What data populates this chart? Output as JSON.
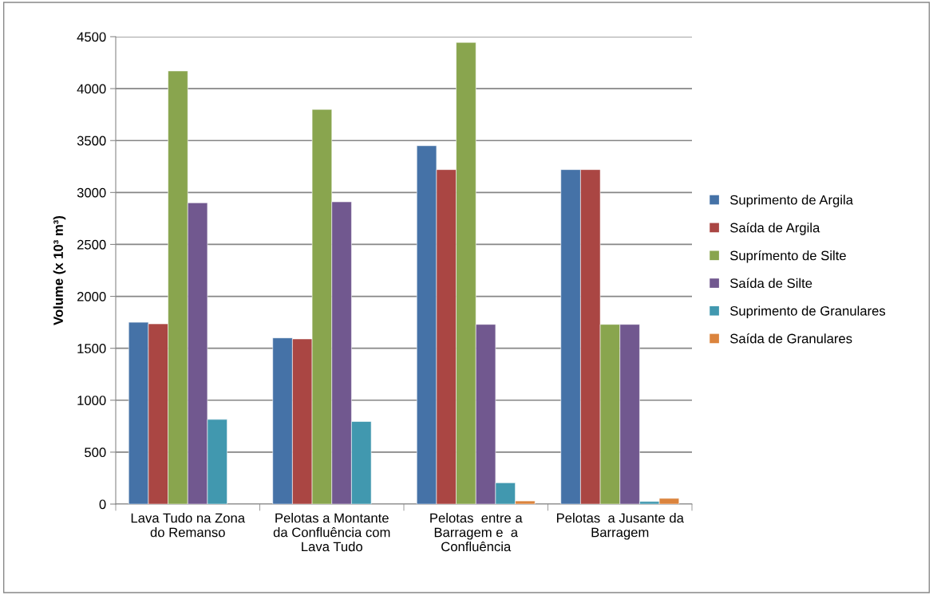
{
  "chart_data": {
    "type": "bar",
    "ylabel": "Volume (x 10³ m³)",
    "categories": [
      "Lava Tudo na Zona\ndo Remanso",
      "Pelotas a Montante\nda Confluência com\nLava Tudo",
      "Pelotas  entre a\nBarragem e  a\nConfluência",
      "Pelotas  a Jusante da\nBarragem"
    ],
    "series": [
      {
        "name": "Suprimento de Argila",
        "color": "#4572a7",
        "values": [
          1750,
          1600,
          3450,
          3220
        ]
      },
      {
        "name": "Saída de Argila",
        "color": "#aa4643",
        "values": [
          1735,
          1590,
          3220,
          3220
        ]
      },
      {
        "name": "Suprímento de Silte",
        "color": "#89a54e",
        "values": [
          4170,
          3800,
          4445,
          1730
        ]
      },
      {
        "name": "Saída de Silte",
        "color": "#71588f",
        "values": [
          2900,
          2910,
          1730,
          1730
        ]
      },
      {
        "name": "Suprimento de Granulares",
        "color": "#4198af",
        "values": [
          815,
          795,
          205,
          25
        ]
      },
      {
        "name": "Saída de Granulares",
        "color": "#db843d",
        "values": [
          null,
          null,
          30,
          55
        ]
      }
    ],
    "ylim": [
      0,
      4500
    ],
    "yticks": [
      0,
      500,
      1000,
      1500,
      2000,
      2500,
      3000,
      3500,
      4000,
      4500
    ],
    "grid": "y",
    "legend": "right"
  }
}
